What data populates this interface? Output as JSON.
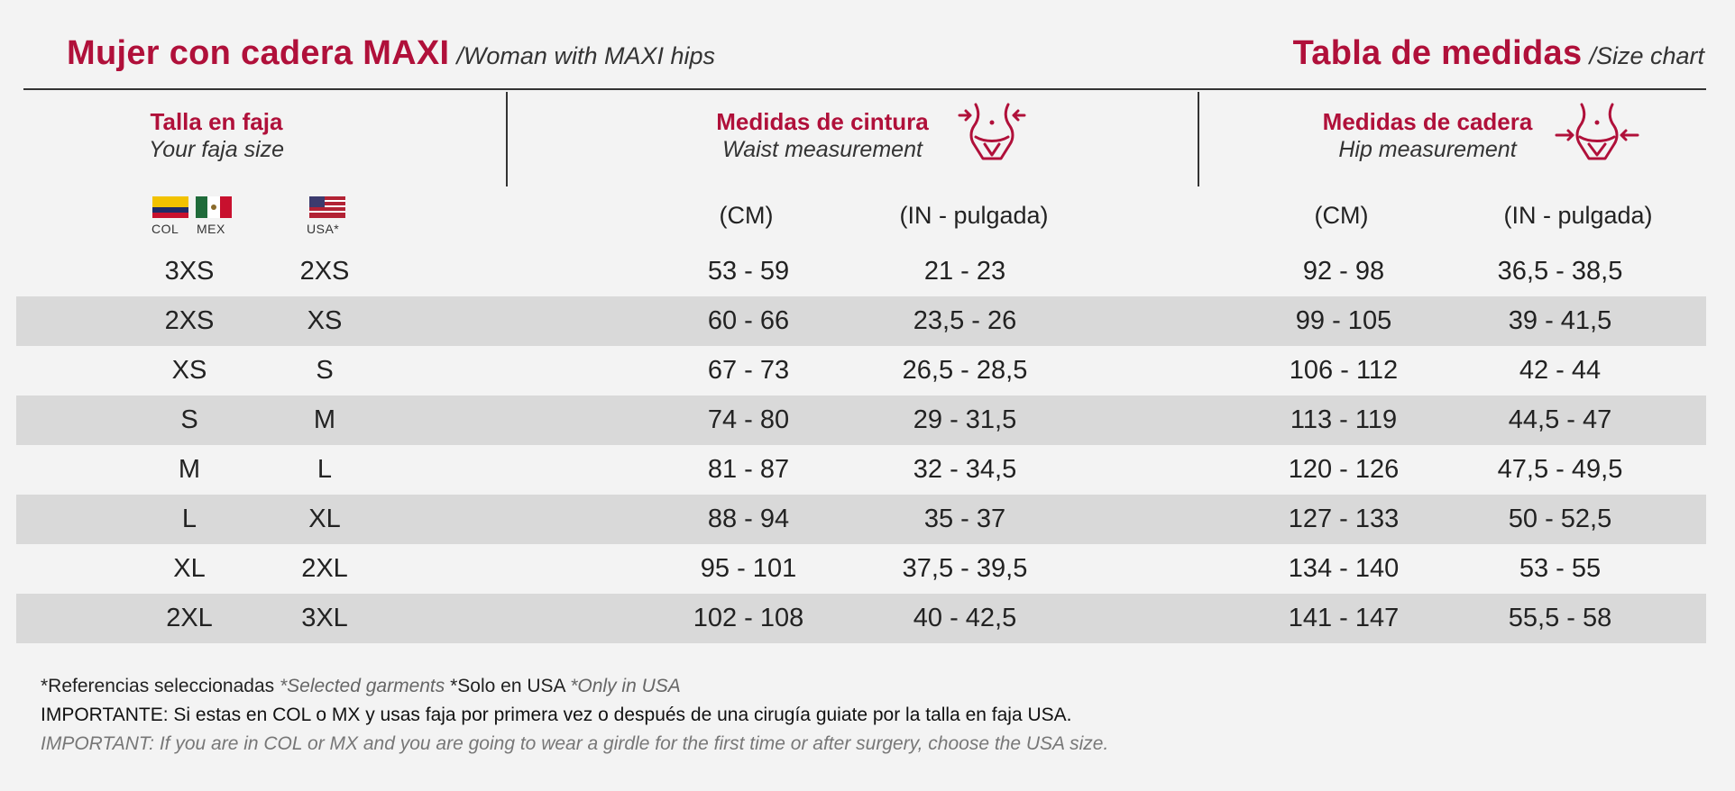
{
  "title_left": {
    "main": "Mujer con cadera MAXI",
    "sub": "/Woman with MAXI hips"
  },
  "title_right": {
    "main": "Tabla de medidas",
    "sub": "/Size chart"
  },
  "headers": {
    "size": {
      "es": "Talla en faja",
      "en": "Your faja size"
    },
    "waist": {
      "es": "Medidas de cintura",
      "en": "Waist measurement",
      "icon": "waist-measure-icon"
    },
    "hip": {
      "es": "Medidas de cadera",
      "en": "Hip measurement",
      "icon": "hip-measure-icon"
    }
  },
  "flags": {
    "col": "COL",
    "mex": "MEX",
    "usa": "USA*"
  },
  "units": {
    "waist_cm": "(CM)",
    "waist_in": "(IN - pulgada)",
    "hip_cm": "(CM)",
    "hip_in": "(IN - pulgada)"
  },
  "rows": [
    {
      "colmex": "3XS",
      "usa": "2XS",
      "waist_cm": "53  -  59",
      "waist_in": "21  -  23",
      "hip_cm": "92 -  98",
      "hip_in": "36,5  -  38,5"
    },
    {
      "colmex": "2XS",
      "usa": "XS",
      "waist_cm": "60  -  66",
      "waist_in": "23,5 -  26",
      "hip_cm": "99 -  105",
      "hip_in": "39  -  41,5"
    },
    {
      "colmex": "XS",
      "usa": "S",
      "waist_cm": "67  -  73",
      "waist_in": "26,5 -  28,5",
      "hip_cm": "106  -  112",
      "hip_in": "42  -  44"
    },
    {
      "colmex": "S",
      "usa": "M",
      "waist_cm": "74  -  80",
      "waist_in": "29 -  31,5",
      "hip_cm": "113   -  119",
      "hip_in": "44,5  -  47"
    },
    {
      "colmex": "M",
      "usa": "L",
      "waist_cm": "81   -  87",
      "waist_in": "32 -  34,5",
      "hip_cm": "120  -  126",
      "hip_in": "47,5  -  49,5"
    },
    {
      "colmex": "L",
      "usa": "XL",
      "waist_cm": "88  -  94",
      "waist_in": "35 -  37",
      "hip_cm": "127  -  133",
      "hip_in": "50  -  52,5"
    },
    {
      "colmex": "XL",
      "usa": "2XL",
      "waist_cm": "95  -  101",
      "waist_in": "37,5 -  39,5",
      "hip_cm": "134  -  140",
      "hip_in": "53  -  55"
    },
    {
      "colmex": "2XL",
      "usa": "3XL",
      "waist_cm": "102  -  108",
      "waist_in": "40 -  42,5",
      "hip_cm": "141  -  147",
      "hip_in": "55,5  -  58"
    }
  ],
  "notes": {
    "ref_es": "*Referencias seleccionadas",
    "ref_en": "*Selected garments",
    "usa_es": "*Solo en USA",
    "usa_en": "*Only in USA",
    "important_es": "IMPORTANTE: Si estas en COL o MX y usas faja por primera vez o después de una cirugía guiate por la talla en faja USA.",
    "important_en": "IMPORTANT: If you are in COL or MX and you are going to wear a girdle for the first time or after surgery, choose the USA size."
  },
  "colors": {
    "accent": "#b0103a",
    "row_shade": "#d9d9d9",
    "background": "#f3f3f3"
  }
}
